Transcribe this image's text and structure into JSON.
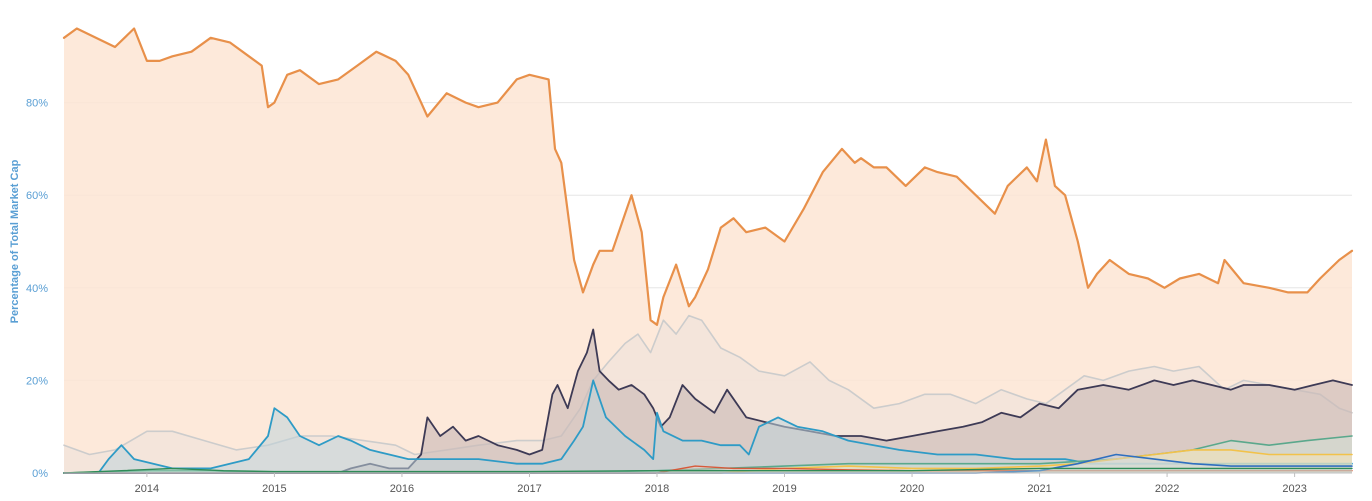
{
  "chart_data": {
    "type": "area",
    "title": "",
    "xlabel": "",
    "ylabel": "Percentage of Total Market Cap",
    "xlim": [
      2013.35,
      2023.45
    ],
    "ylim": [
      0,
      100
    ],
    "x_ticks": [
      2014,
      2015,
      2016,
      2017,
      2018,
      2019,
      2020,
      2021,
      2022,
      2023
    ],
    "x_tick_labels": [
      "2014",
      "2015",
      "2016",
      "2017",
      "2018",
      "2019",
      "2020",
      "2021",
      "2022",
      "2023"
    ],
    "y_ticks": [
      0,
      20,
      40,
      60,
      80
    ],
    "y_tick_labels": [
      "0%",
      "20%",
      "40%",
      "60%",
      "80%"
    ],
    "grid": "horizontal",
    "legend": "none",
    "colors": {
      "axis_text": "#5a9fd4",
      "x_tick_text": "#555555",
      "grid": "#e6e6e6"
    },
    "series": [
      {
        "color": "#e8904a",
        "fill": "#fde5d4",
        "fill_opacity": 0.85,
        "x": [
          2013.35,
          2013.45,
          2013.6,
          2013.75,
          2013.9,
          2014.0,
          2014.1,
          2014.2,
          2014.35,
          2014.5,
          2014.65,
          2014.8,
          2014.9,
          2014.95,
          2015.0,
          2015.1,
          2015.2,
          2015.35,
          2015.5,
          2015.65,
          2015.8,
          2015.95,
          2016.05,
          2016.15,
          2016.2,
          2016.35,
          2016.5,
          2016.6,
          2016.75,
          2016.9,
          2017.0,
          2017.15,
          2017.2,
          2017.25,
          2017.35,
          2017.42,
          2017.5,
          2017.55,
          2017.65,
          2017.75,
          2017.8,
          2017.88,
          2017.95,
          2018.0,
          2018.05,
          2018.15,
          2018.25,
          2018.3,
          2018.4,
          2018.5,
          2018.6,
          2018.7,
          2018.85,
          2019.0,
          2019.15,
          2019.3,
          2019.45,
          2019.55,
          2019.6,
          2019.7,
          2019.8,
          2019.95,
          2020.1,
          2020.2,
          2020.35,
          2020.5,
          2020.65,
          2020.75,
          2020.9,
          2020.98,
          2021.05,
          2021.12,
          2021.2,
          2021.3,
          2021.38,
          2021.45,
          2021.55,
          2021.7,
          2021.85,
          2021.98,
          2022.1,
          2022.25,
          2022.4,
          2022.45,
          2022.6,
          2022.8,
          2022.95,
          2023.1,
          2023.2,
          2023.35,
          2023.45
        ],
        "values": [
          94,
          96,
          94,
          92,
          96,
          89,
          89,
          90,
          91,
          94,
          93,
          90,
          88,
          79,
          80,
          86,
          87,
          84,
          85,
          88,
          91,
          89,
          86,
          80,
          77,
          82,
          80,
          79,
          80,
          85,
          86,
          85,
          70,
          67,
          46,
          39,
          45,
          48,
          48,
          56,
          60,
          52,
          33,
          32,
          38,
          45,
          36,
          38,
          44,
          53,
          55,
          52,
          53,
          50,
          57,
          65,
          70,
          67,
          68,
          66,
          66,
          62,
          66,
          65,
          64,
          60,
          56,
          62,
          66,
          63,
          72,
          62,
          60,
          50,
          40,
          43,
          46,
          43,
          42,
          40,
          42,
          43,
          41,
          46,
          41,
          40,
          39,
          39,
          42,
          46,
          48
        ],
        "line_width": 2.2
      },
      {
        "color": "#cccccc",
        "fill": "#f0e2dc",
        "fill_opacity": 0.7,
        "x": [
          2013.35,
          2013.55,
          2013.75,
          2014.0,
          2014.2,
          2014.45,
          2014.7,
          2014.95,
          2015.2,
          2015.45,
          2015.7,
          2015.95,
          2016.1,
          2016.35,
          2016.6,
          2016.9,
          2017.1,
          2017.25,
          2017.4,
          2017.5,
          2017.62,
          2017.75,
          2017.85,
          2017.95,
          2018.05,
          2018.15,
          2018.25,
          2018.35,
          2018.5,
          2018.65,
          2018.8,
          2019.0,
          2019.2,
          2019.35,
          2019.5,
          2019.7,
          2019.9,
          2020.1,
          2020.3,
          2020.5,
          2020.7,
          2020.9,
          2021.05,
          2021.2,
          2021.35,
          2021.5,
          2021.7,
          2021.9,
          2022.05,
          2022.25,
          2022.45,
          2022.6,
          2022.8,
          2023.0,
          2023.2,
          2023.35,
          2023.45
        ],
        "values": [
          6,
          4,
          5,
          9,
          9,
          7,
          5,
          6,
          8,
          8,
          7,
          6,
          4,
          5,
          6,
          7,
          7,
          8,
          14,
          20,
          24,
          28,
          30,
          26,
          33,
          30,
          34,
          33,
          27,
          25,
          22,
          21,
          24,
          20,
          18,
          14,
          15,
          17,
          17,
          15,
          18,
          16,
          15,
          18,
          21,
          20,
          22,
          23,
          22,
          23,
          18,
          20,
          19,
          18,
          17,
          14,
          13
        ],
        "line_width": 1.6
      },
      {
        "color": "#3d3a55",
        "fill": "#cdbcb8",
        "fill_opacity": 0.65,
        "x": [
          2013.35,
          2014.0,
          2014.5,
          2015.0,
          2015.5,
          2015.6,
          2015.75,
          2015.9,
          2016.05,
          2016.15,
          2016.2,
          2016.3,
          2016.4,
          2016.5,
          2016.6,
          2016.75,
          2016.9,
          2017.0,
          2017.1,
          2017.18,
          2017.22,
          2017.3,
          2017.38,
          2017.45,
          2017.5,
          2017.55,
          2017.62,
          2017.7,
          2017.8,
          2017.9,
          2017.97,
          2018.03,
          2018.1,
          2018.2,
          2018.3,
          2018.45,
          2018.55,
          2018.7,
          2018.85,
          2019.0,
          2019.2,
          2019.4,
          2019.6,
          2019.8,
          2020.0,
          2020.2,
          2020.4,
          2020.55,
          2020.7,
          2020.85,
          2021.0,
          2021.15,
          2021.3,
          2021.5,
          2021.7,
          2021.9,
          2022.05,
          2022.2,
          2022.35,
          2022.5,
          2022.6,
          2022.8,
          2023.0,
          2023.15,
          2023.3,
          2023.45
        ],
        "values": [
          0,
          0,
          0,
          0,
          0,
          1,
          2,
          1,
          1,
          4,
          12,
          8,
          10,
          7,
          8,
          6,
          5,
          4,
          5,
          17,
          19,
          14,
          22,
          26,
          31,
          22,
          20,
          18,
          19,
          17,
          14,
          10,
          12,
          19,
          16,
          13,
          18,
          12,
          11,
          10,
          9,
          8,
          8,
          7,
          8,
          9,
          10,
          11,
          13,
          12,
          15,
          14,
          18,
          19,
          18,
          20,
          19,
          20,
          19,
          18,
          19,
          19,
          18,
          19,
          20,
          19
        ],
        "line_width": 1.8
      },
      {
        "color": "#2e9bc6",
        "fill": "#bfd3da",
        "fill_opacity": 0.55,
        "x": [
          2013.35,
          2013.62,
          2013.7,
          2013.8,
          2013.9,
          2014.2,
          2014.5,
          2014.8,
          2014.95,
          2015.0,
          2015.1,
          2015.2,
          2015.35,
          2015.5,
          2015.6,
          2015.75,
          2015.9,
          2016.05,
          2016.3,
          2016.6,
          2016.9,
          2017.1,
          2017.25,
          2017.35,
          2017.42,
          2017.5,
          2017.6,
          2017.75,
          2017.9,
          2017.97,
          2018.0,
          2018.05,
          2018.2,
          2018.35,
          2018.5,
          2018.65,
          2018.72,
          2018.8,
          2018.95,
          2019.1,
          2019.3,
          2019.5,
          2019.7,
          2019.9,
          2020.2,
          2020.5,
          2020.8,
          2021.0,
          2021.2,
          2021.4,
          2021.6,
          2021.9,
          2022.2,
          2022.5,
          2022.8,
          2023.1,
          2023.45
        ],
        "values": [
          0,
          0,
          3,
          6,
          3,
          1,
          1,
          3,
          8,
          14,
          12,
          8,
          6,
          8,
          7,
          5,
          4,
          3,
          3,
          3,
          2,
          2,
          3,
          7,
          10,
          20,
          12,
          8,
          5,
          3,
          13,
          9,
          7,
          7,
          6,
          6,
          4,
          10,
          12,
          10,
          9,
          7,
          6,
          5,
          4,
          4,
          3,
          3,
          3,
          2,
          2,
          2,
          2,
          2,
          2,
          2,
          2
        ],
        "line_width": 1.8
      },
      {
        "color": "#5aa88c",
        "fill": "#cfe2d6",
        "fill_opacity": 0.5,
        "x": [
          2013.35,
          2014.0,
          2014.5,
          2015.0,
          2016.0,
          2017.0,
          2018.0,
          2018.5,
          2019.0,
          2019.5,
          2020.0,
          2020.5,
          2021.0,
          2021.3,
          2021.6,
          2021.9,
          2022.2,
          2022.5,
          2022.8,
          2023.1,
          2023.45
        ],
        "values": [
          0,
          0.5,
          0.5,
          0,
          0,
          0,
          0.5,
          1,
          1.5,
          2,
          2,
          2,
          2,
          2.5,
          3,
          4,
          5,
          7,
          6,
          7,
          8
        ],
        "line_width": 1.6
      },
      {
        "color": "#f2c24a",
        "fill": "#f7e3b5",
        "fill_opacity": 0.5,
        "x": [
          2013.35,
          2018.5,
          2019.0,
          2019.5,
          2020.0,
          2020.5,
          2021.0,
          2021.3,
          2021.6,
          2021.9,
          2022.2,
          2022.5,
          2022.8,
          2023.1,
          2023.45
        ],
        "values": [
          0,
          0,
          1,
          1.5,
          1,
          1,
          1.5,
          2,
          3,
          4,
          5,
          5,
          4,
          4,
          4
        ],
        "line_width": 1.6
      },
      {
        "color": "#d65a3a",
        "fill": "#f1c8bb",
        "fill_opacity": 0.4,
        "x": [
          2013.35,
          2018.0,
          2018.3,
          2018.6,
          2019.0,
          2019.5,
          2020.0,
          2021.0,
          2022.0,
          2023.0,
          2023.45
        ],
        "values": [
          0,
          0,
          1.5,
          1,
          1,
          0.7,
          0.5,
          0.5,
          0.5,
          0.5,
          0.5
        ],
        "line_width": 1.4
      },
      {
        "color": "#2f6fbf",
        "fill": "#c8d6ea",
        "fill_opacity": 0.4,
        "x": [
          2013.35,
          2020.5,
          2021.0,
          2021.3,
          2021.6,
          2021.9,
          2022.2,
          2022.5,
          2022.8,
          2023.1,
          2023.45
        ],
        "values": [
          0,
          0,
          0.5,
          2,
          4,
          3,
          2,
          1.5,
          1.5,
          1.5,
          1.5
        ],
        "line_width": 1.6
      },
      {
        "color": "#2e8b57",
        "fill": "#c6e3cf",
        "fill_opacity": 0.35,
        "x": [
          2013.35,
          2013.8,
          2014.2,
          2014.6,
          2015.0,
          2016.0,
          2017.0,
          2018.0,
          2019.0,
          2020.0,
          2021.0,
          2022.0,
          2023.0,
          2023.45
        ],
        "values": [
          0,
          0.5,
          1,
          0.5,
          0.3,
          0.3,
          0.3,
          0.5,
          0.5,
          0.5,
          1,
          1,
          1,
          1
        ],
        "line_width": 1.4
      }
    ]
  }
}
